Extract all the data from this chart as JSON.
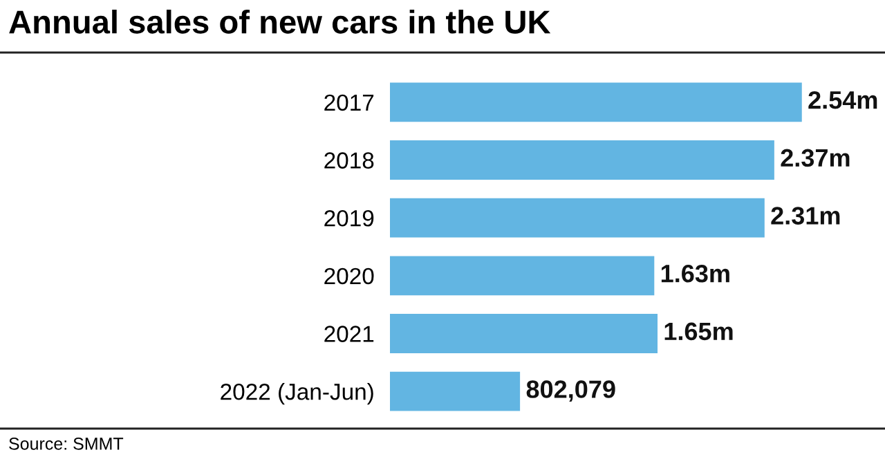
{
  "chart_data": {
    "type": "bar",
    "orientation": "horizontal",
    "title": "Annual sales of new cars in the UK",
    "categories": [
      "2017",
      "2018",
      "2019",
      "2020",
      "2021",
      "2022 (Jan-Jun)"
    ],
    "values": [
      2540000,
      2370000,
      2310000,
      1630000,
      1650000,
      802079
    ],
    "value_labels": [
      "2.54m",
      "2.37m",
      "2.31m",
      "1.63m",
      "1.65m",
      "802,079"
    ],
    "color": "#62b5e2",
    "annotations": [
      "Source: SMMT"
    ]
  }
}
